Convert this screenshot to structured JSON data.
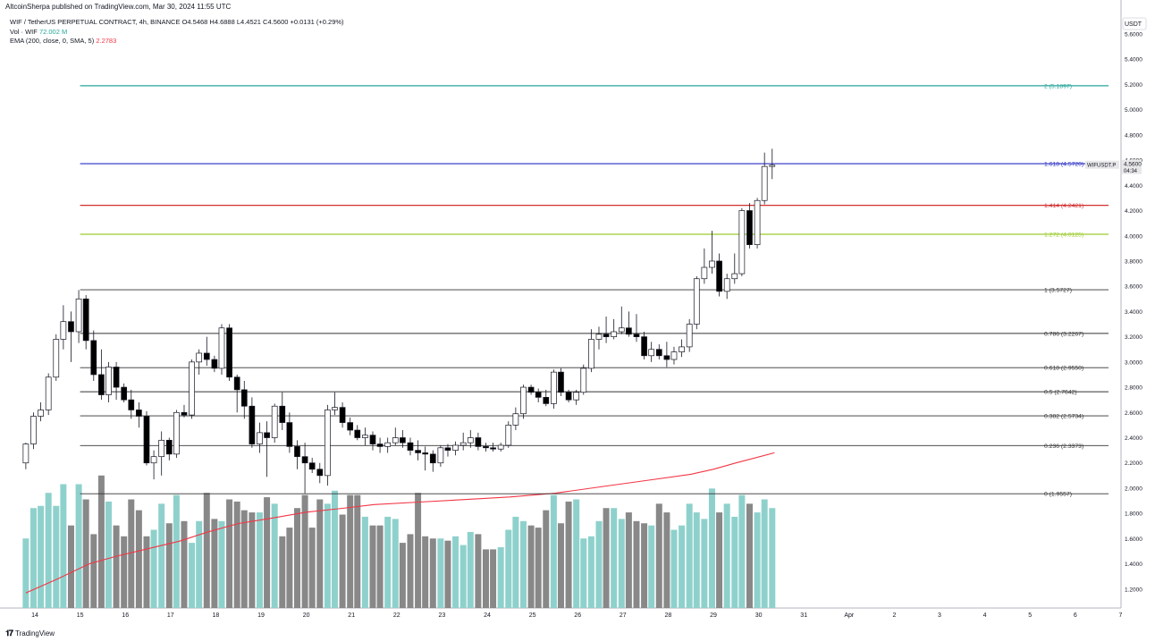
{
  "header": {
    "published": "AltcoinSherpa published on TradingView.com, Mar 30, 2024 11:55 UTC"
  },
  "legend": {
    "symbol": "WIF / TetherUS PERPETUAL CONTRACT, 4h, BINANCE",
    "ohlc": "O4.5468  H4.6888  L4.4521  C4.5600  +0.0131 (+0.29%)",
    "vol_label": "Vol · WIF",
    "vol_value": "72.002 M",
    "ema_label": "EMA (200, close, 0, SMA, 5)",
    "ema_value": "2.2783"
  },
  "footer": {
    "brand": "TradingView"
  },
  "colors": {
    "up_body": "#ffffff",
    "down_body": "#000000",
    "wick": "#131722",
    "vol_up": "#8ed1cc",
    "vol_down": "#888888",
    "ema": "#f23645",
    "fib_2": "#26a69a",
    "fib_1618": "#2a2ec4",
    "fib_1414": "#d32f2f",
    "fib_1272": "#9ccc2f",
    "fib_default": "#333333"
  },
  "chart_data": {
    "type": "candlestick",
    "price_axis": {
      "currency": "USDT",
      "ylim": [
        1.05,
        5.77
      ],
      "ticks": [
        "5.6000",
        "5.4000",
        "5.2000",
        "5.0000",
        "4.8000",
        "4.6000",
        "4.4000",
        "4.2000",
        "4.0000",
        "3.8000",
        "3.6000",
        "3.4000",
        "3.2000",
        "3.0000",
        "2.8000",
        "2.6000",
        "2.4000",
        "2.2000",
        "2.0000",
        "1.8000",
        "1.6000",
        "1.4000",
        "1.2000"
      ],
      "last_price": "4.5600",
      "countdown": "04:34",
      "symbol_tag": "WIFUSDT.P"
    },
    "x_axis": {
      "labels": [
        "14",
        "15",
        "16",
        "17",
        "18",
        "19",
        "20",
        "21",
        "22",
        "23",
        "24",
        "25",
        "26",
        "27",
        "28",
        "29",
        "30",
        "31",
        "Apr",
        "2",
        "3",
        "4",
        "5",
        "6",
        "7"
      ]
    },
    "fib_levels": [
      {
        "label": "2 (5.1897)",
        "value": 5.1897,
        "color_key": "fib_2"
      },
      {
        "label": "1.618 (4.5720)",
        "value": 4.572,
        "color_key": "fib_1618"
      },
      {
        "label": "1.414 (4.2421)",
        "value": 4.2421,
        "color_key": "fib_1414"
      },
      {
        "label": "1.272 (4.0125)",
        "value": 4.0125,
        "color_key": "fib_1272"
      },
      {
        "label": "1 (3.5727)",
        "value": 3.5727,
        "color_key": "fib_default"
      },
      {
        "label": "0.786 (3.2267)",
        "value": 3.2267,
        "color_key": "fib_default"
      },
      {
        "label": "0.618 (2.9550)",
        "value": 2.955,
        "color_key": "fib_default"
      },
      {
        "label": "0.5 (2.7642)",
        "value": 2.7642,
        "color_key": "fib_default"
      },
      {
        "label": "0.382 (2.5734)",
        "value": 2.5734,
        "color_key": "fib_default"
      },
      {
        "label": "0.236 (2.3373)",
        "value": 2.3373,
        "color_key": "fib_default"
      },
      {
        "label": "0 (1.9557)",
        "value": 1.9557,
        "color_key": "fib_default"
      }
    ],
    "candles": [
      {
        "day": 13.8,
        "o": 2.2,
        "h": 2.36,
        "l": 2.15,
        "c": 2.35
      },
      {
        "day": 13.97,
        "o": 2.35,
        "h": 2.6,
        "l": 2.31,
        "c": 2.57
      },
      {
        "day": 14.13,
        "o": 2.57,
        "h": 2.68,
        "l": 2.53,
        "c": 2.62
      },
      {
        "day": 14.3,
        "o": 2.62,
        "h": 2.91,
        "l": 2.58,
        "c": 2.88
      },
      {
        "day": 14.47,
        "o": 2.88,
        "h": 3.22,
        "l": 2.85,
        "c": 3.18
      },
      {
        "day": 14.63,
        "o": 3.18,
        "h": 3.45,
        "l": 3.1,
        "c": 3.32
      },
      {
        "day": 14.8,
        "o": 3.32,
        "h": 3.4,
        "l": 3.0,
        "c": 3.24
      },
      {
        "day": 14.97,
        "o": 3.24,
        "h": 3.57,
        "l": 3.15,
        "c": 3.5
      },
      {
        "day": 15.13,
        "o": 3.5,
        "h": 3.53,
        "l": 3.1,
        "c": 3.17
      },
      {
        "day": 15.3,
        "o": 3.17,
        "h": 3.25,
        "l": 2.85,
        "c": 2.9
      },
      {
        "day": 15.47,
        "o": 2.9,
        "h": 3.1,
        "l": 2.7,
        "c": 2.74
      },
      {
        "day": 15.63,
        "o": 2.74,
        "h": 3.0,
        "l": 2.68,
        "c": 2.96
      },
      {
        "day": 15.8,
        "o": 2.96,
        "h": 3.0,
        "l": 2.7,
        "c": 2.8
      },
      {
        "day": 15.97,
        "o": 2.8,
        "h": 2.83,
        "l": 2.68,
        "c": 2.7
      },
      {
        "day": 16.13,
        "o": 2.7,
        "h": 2.78,
        "l": 2.55,
        "c": 2.62
      },
      {
        "day": 16.3,
        "o": 2.62,
        "h": 2.68,
        "l": 2.48,
        "c": 2.57
      },
      {
        "day": 16.47,
        "o": 2.57,
        "h": 2.61,
        "l": 2.18,
        "c": 2.2
      },
      {
        "day": 16.63,
        "o": 2.2,
        "h": 2.3,
        "l": 2.07,
        "c": 2.25
      },
      {
        "day": 16.8,
        "o": 2.25,
        "h": 2.45,
        "l": 2.1,
        "c": 2.38
      },
      {
        "day": 16.97,
        "o": 2.38,
        "h": 2.4,
        "l": 2.22,
        "c": 2.27
      },
      {
        "day": 17.13,
        "o": 2.27,
        "h": 2.62,
        "l": 2.24,
        "c": 2.6
      },
      {
        "day": 17.3,
        "o": 2.6,
        "h": 2.66,
        "l": 2.56,
        "c": 2.58
      },
      {
        "day": 17.47,
        "o": 2.58,
        "h": 3.02,
        "l": 2.55,
        "c": 3.0
      },
      {
        "day": 17.63,
        "o": 3.0,
        "h": 3.1,
        "l": 2.9,
        "c": 3.07
      },
      {
        "day": 17.8,
        "o": 3.07,
        "h": 3.2,
        "l": 2.97,
        "c": 3.02
      },
      {
        "day": 17.97,
        "o": 3.02,
        "h": 3.05,
        "l": 2.92,
        "c": 2.95
      },
      {
        "day": 18.13,
        "o": 2.95,
        "h": 3.3,
        "l": 2.9,
        "c": 3.27
      },
      {
        "day": 18.3,
        "o": 3.27,
        "h": 3.3,
        "l": 2.85,
        "c": 2.88
      },
      {
        "day": 18.47,
        "o": 2.88,
        "h": 2.9,
        "l": 2.6,
        "c": 2.78
      },
      {
        "day": 18.63,
        "o": 2.78,
        "h": 2.85,
        "l": 2.55,
        "c": 2.65
      },
      {
        "day": 18.8,
        "o": 2.65,
        "h": 2.72,
        "l": 2.32,
        "c": 2.35
      },
      {
        "day": 18.97,
        "o": 2.35,
        "h": 2.52,
        "l": 2.28,
        "c": 2.44
      },
      {
        "day": 19.13,
        "o": 2.44,
        "h": 2.53,
        "l": 2.09,
        "c": 2.4
      },
      {
        "day": 19.3,
        "o": 2.4,
        "h": 2.67,
        "l": 2.36,
        "c": 2.65
      },
      {
        "day": 19.47,
        "o": 2.65,
        "h": 2.76,
        "l": 2.46,
        "c": 2.52
      },
      {
        "day": 19.63,
        "o": 2.52,
        "h": 2.6,
        "l": 2.28,
        "c": 2.33
      },
      {
        "day": 19.8,
        "o": 2.33,
        "h": 2.38,
        "l": 2.15,
        "c": 2.25
      },
      {
        "day": 19.97,
        "o": 2.25,
        "h": 2.36,
        "l": 1.96,
        "c": 2.2
      },
      {
        "day": 20.13,
        "o": 2.2,
        "h": 2.24,
        "l": 2.12,
        "c": 2.15
      },
      {
        "day": 20.3,
        "o": 2.15,
        "h": 2.2,
        "l": 2.04,
        "c": 2.1
      },
      {
        "day": 20.47,
        "o": 2.1,
        "h": 2.66,
        "l": 2.02,
        "c": 2.62
      },
      {
        "day": 20.63,
        "o": 2.62,
        "h": 2.76,
        "l": 2.58,
        "c": 2.64
      },
      {
        "day": 20.8,
        "o": 2.64,
        "h": 2.68,
        "l": 2.48,
        "c": 2.52
      },
      {
        "day": 20.97,
        "o": 2.52,
        "h": 2.56,
        "l": 2.42,
        "c": 2.46
      },
      {
        "day": 21.13,
        "o": 2.46,
        "h": 2.5,
        "l": 2.38,
        "c": 2.4
      },
      {
        "day": 21.3,
        "o": 2.4,
        "h": 2.48,
        "l": 2.34,
        "c": 2.42
      },
      {
        "day": 21.47,
        "o": 2.42,
        "h": 2.45,
        "l": 2.3,
        "c": 2.35
      },
      {
        "day": 21.63,
        "o": 2.35,
        "h": 2.4,
        "l": 2.28,
        "c": 2.33
      },
      {
        "day": 21.8,
        "o": 2.33,
        "h": 2.4,
        "l": 2.28,
        "c": 2.36
      },
      {
        "day": 21.97,
        "o": 2.36,
        "h": 2.48,
        "l": 2.34,
        "c": 2.4
      },
      {
        "day": 22.13,
        "o": 2.4,
        "h": 2.46,
        "l": 2.32,
        "c": 2.36
      },
      {
        "day": 22.3,
        "o": 2.36,
        "h": 2.4,
        "l": 2.26,
        "c": 2.3
      },
      {
        "day": 22.47,
        "o": 2.3,
        "h": 2.38,
        "l": 2.22,
        "c": 2.28
      },
      {
        "day": 22.63,
        "o": 2.28,
        "h": 2.33,
        "l": 2.14,
        "c": 2.27
      },
      {
        "day": 22.8,
        "o": 2.27,
        "h": 2.3,
        "l": 2.13,
        "c": 2.2
      },
      {
        "day": 22.97,
        "o": 2.2,
        "h": 2.34,
        "l": 2.17,
        "c": 2.32
      },
      {
        "day": 23.13,
        "o": 2.32,
        "h": 2.35,
        "l": 2.25,
        "c": 2.3
      },
      {
        "day": 23.3,
        "o": 2.3,
        "h": 2.37,
        "l": 2.26,
        "c": 2.34
      },
      {
        "day": 23.47,
        "o": 2.34,
        "h": 2.44,
        "l": 2.3,
        "c": 2.36
      },
      {
        "day": 23.63,
        "o": 2.36,
        "h": 2.46,
        "l": 2.32,
        "c": 2.4
      },
      {
        "day": 23.8,
        "o": 2.4,
        "h": 2.44,
        "l": 2.3,
        "c": 2.33
      },
      {
        "day": 23.97,
        "o": 2.33,
        "h": 2.36,
        "l": 2.29,
        "c": 2.32
      },
      {
        "day": 24.13,
        "o": 2.32,
        "h": 2.36,
        "l": 2.29,
        "c": 2.31
      },
      {
        "day": 24.3,
        "o": 2.31,
        "h": 2.36,
        "l": 2.29,
        "c": 2.34
      },
      {
        "day": 24.47,
        "o": 2.34,
        "h": 2.53,
        "l": 2.32,
        "c": 2.5
      },
      {
        "day": 24.63,
        "o": 2.5,
        "h": 2.64,
        "l": 2.46,
        "c": 2.59
      },
      {
        "day": 24.8,
        "o": 2.59,
        "h": 2.82,
        "l": 2.55,
        "c": 2.8
      },
      {
        "day": 24.97,
        "o": 2.8,
        "h": 2.82,
        "l": 2.74,
        "c": 2.76
      },
      {
        "day": 25.13,
        "o": 2.76,
        "h": 2.79,
        "l": 2.68,
        "c": 2.72
      },
      {
        "day": 25.3,
        "o": 2.72,
        "h": 2.78,
        "l": 2.65,
        "c": 2.67
      },
      {
        "day": 25.47,
        "o": 2.67,
        "h": 2.94,
        "l": 2.63,
        "c": 2.92
      },
      {
        "day": 25.63,
        "o": 2.92,
        "h": 2.95,
        "l": 2.73,
        "c": 2.76
      },
      {
        "day": 25.8,
        "o": 2.76,
        "h": 2.78,
        "l": 2.68,
        "c": 2.7
      },
      {
        "day": 25.97,
        "o": 2.7,
        "h": 2.78,
        "l": 2.66,
        "c": 2.76
      },
      {
        "day": 26.13,
        "o": 2.76,
        "h": 2.98,
        "l": 2.74,
        "c": 2.95
      },
      {
        "day": 26.3,
        "o": 2.95,
        "h": 3.26,
        "l": 2.92,
        "c": 3.18
      },
      {
        "day": 26.47,
        "o": 3.18,
        "h": 3.28,
        "l": 3.1,
        "c": 3.22
      },
      {
        "day": 26.63,
        "o": 3.22,
        "h": 3.36,
        "l": 3.15,
        "c": 3.2
      },
      {
        "day": 26.8,
        "o": 3.2,
        "h": 3.34,
        "l": 3.18,
        "c": 3.24
      },
      {
        "day": 26.97,
        "o": 3.24,
        "h": 3.44,
        "l": 3.22,
        "c": 3.27
      },
      {
        "day": 27.13,
        "o": 3.27,
        "h": 3.4,
        "l": 3.2,
        "c": 3.22
      },
      {
        "day": 27.3,
        "o": 3.22,
        "h": 3.38,
        "l": 3.16,
        "c": 3.2
      },
      {
        "day": 27.47,
        "o": 3.2,
        "h": 3.24,
        "l": 3.02,
        "c": 3.05
      },
      {
        "day": 27.63,
        "o": 3.05,
        "h": 3.16,
        "l": 3.0,
        "c": 3.1
      },
      {
        "day": 27.8,
        "o": 3.1,
        "h": 3.14,
        "l": 3.02,
        "c": 3.05
      },
      {
        "day": 27.97,
        "o": 3.05,
        "h": 3.16,
        "l": 2.96,
        "c": 3.02
      },
      {
        "day": 28.13,
        "o": 3.02,
        "h": 3.12,
        "l": 2.98,
        "c": 3.08
      },
      {
        "day": 28.3,
        "o": 3.08,
        "h": 3.18,
        "l": 3.04,
        "c": 3.12
      },
      {
        "day": 28.47,
        "o": 3.12,
        "h": 3.34,
        "l": 3.08,
        "c": 3.3
      },
      {
        "day": 28.63,
        "o": 3.3,
        "h": 3.68,
        "l": 3.26,
        "c": 3.66
      },
      {
        "day": 28.8,
        "o": 3.66,
        "h": 3.9,
        "l": 3.62,
        "c": 3.75
      },
      {
        "day": 28.97,
        "o": 3.75,
        "h": 4.04,
        "l": 3.7,
        "c": 3.8
      },
      {
        "day": 29.13,
        "o": 3.8,
        "h": 3.86,
        "l": 3.52,
        "c": 3.56
      },
      {
        "day": 29.3,
        "o": 3.56,
        "h": 3.7,
        "l": 3.5,
        "c": 3.66
      },
      {
        "day": 29.47,
        "o": 3.66,
        "h": 3.86,
        "l": 3.62,
        "c": 3.7
      },
      {
        "day": 29.63,
        "o": 3.7,
        "h": 4.22,
        "l": 3.68,
        "c": 4.2
      },
      {
        "day": 29.8,
        "o": 4.2,
        "h": 4.26,
        "l": 3.9,
        "c": 3.93
      },
      {
        "day": 29.97,
        "o": 3.93,
        "h": 4.3,
        "l": 3.9,
        "c": 4.28
      },
      {
        "day": 30.13,
        "o": 4.28,
        "h": 4.66,
        "l": 4.25,
        "c": 4.55
      },
      {
        "day": 30.3,
        "o": 4.55,
        "h": 4.69,
        "l": 4.45,
        "c": 4.56
      }
    ],
    "volume": {
      "values": [
        32,
        46,
        47,
        53,
        47,
        57,
        38,
        57,
        50,
        34,
        61,
        49,
        38,
        33,
        50,
        45,
        33,
        36,
        48,
        39,
        52,
        40,
        30,
        40,
        53,
        41,
        40,
        50,
        49,
        45,
        44,
        44,
        51,
        48,
        33,
        37,
        46,
        52,
        37,
        50,
        48,
        54,
        43,
        52,
        52,
        42,
        38,
        38,
        42,
        41,
        30,
        34,
        53,
        33,
        32,
        32,
        31,
        33,
        29,
        35,
        34,
        27,
        27,
        28,
        36,
        42,
        40,
        38,
        37,
        45,
        52,
        39,
        49,
        50,
        32,
        33,
        40,
        46,
        46,
        41,
        44,
        40,
        39,
        38,
        48,
        44,
        36,
        38,
        48,
        44,
        41,
        55,
        44,
        48,
        42,
        52,
        48,
        44,
        50,
        46
      ],
      "scale_min": 0,
      "scale_max": 100
    },
    "ema": [
      {
        "day": 13.8,
        "v": 1.17
      },
      {
        "day": 14.5,
        "v": 1.28
      },
      {
        "day": 15.2,
        "v": 1.4
      },
      {
        "day": 15.8,
        "v": 1.46
      },
      {
        "day": 16.5,
        "v": 1.52
      },
      {
        "day": 17.2,
        "v": 1.58
      },
      {
        "day": 17.8,
        "v": 1.65
      },
      {
        "day": 18.5,
        "v": 1.72
      },
      {
        "day": 19.2,
        "v": 1.76
      },
      {
        "day": 20.0,
        "v": 1.81
      },
      {
        "day": 20.8,
        "v": 1.84
      },
      {
        "day": 21.5,
        "v": 1.87
      },
      {
        "day": 22.5,
        "v": 1.89
      },
      {
        "day": 23.5,
        "v": 1.91
      },
      {
        "day": 24.5,
        "v": 1.93
      },
      {
        "day": 25.5,
        "v": 1.96
      },
      {
        "day": 26.5,
        "v": 2.01
      },
      {
        "day": 27.5,
        "v": 2.06
      },
      {
        "day": 28.5,
        "v": 2.11
      },
      {
        "day": 29.0,
        "v": 2.15
      },
      {
        "day": 29.5,
        "v": 2.2
      },
      {
        "day": 30.35,
        "v": 2.28
      }
    ]
  }
}
